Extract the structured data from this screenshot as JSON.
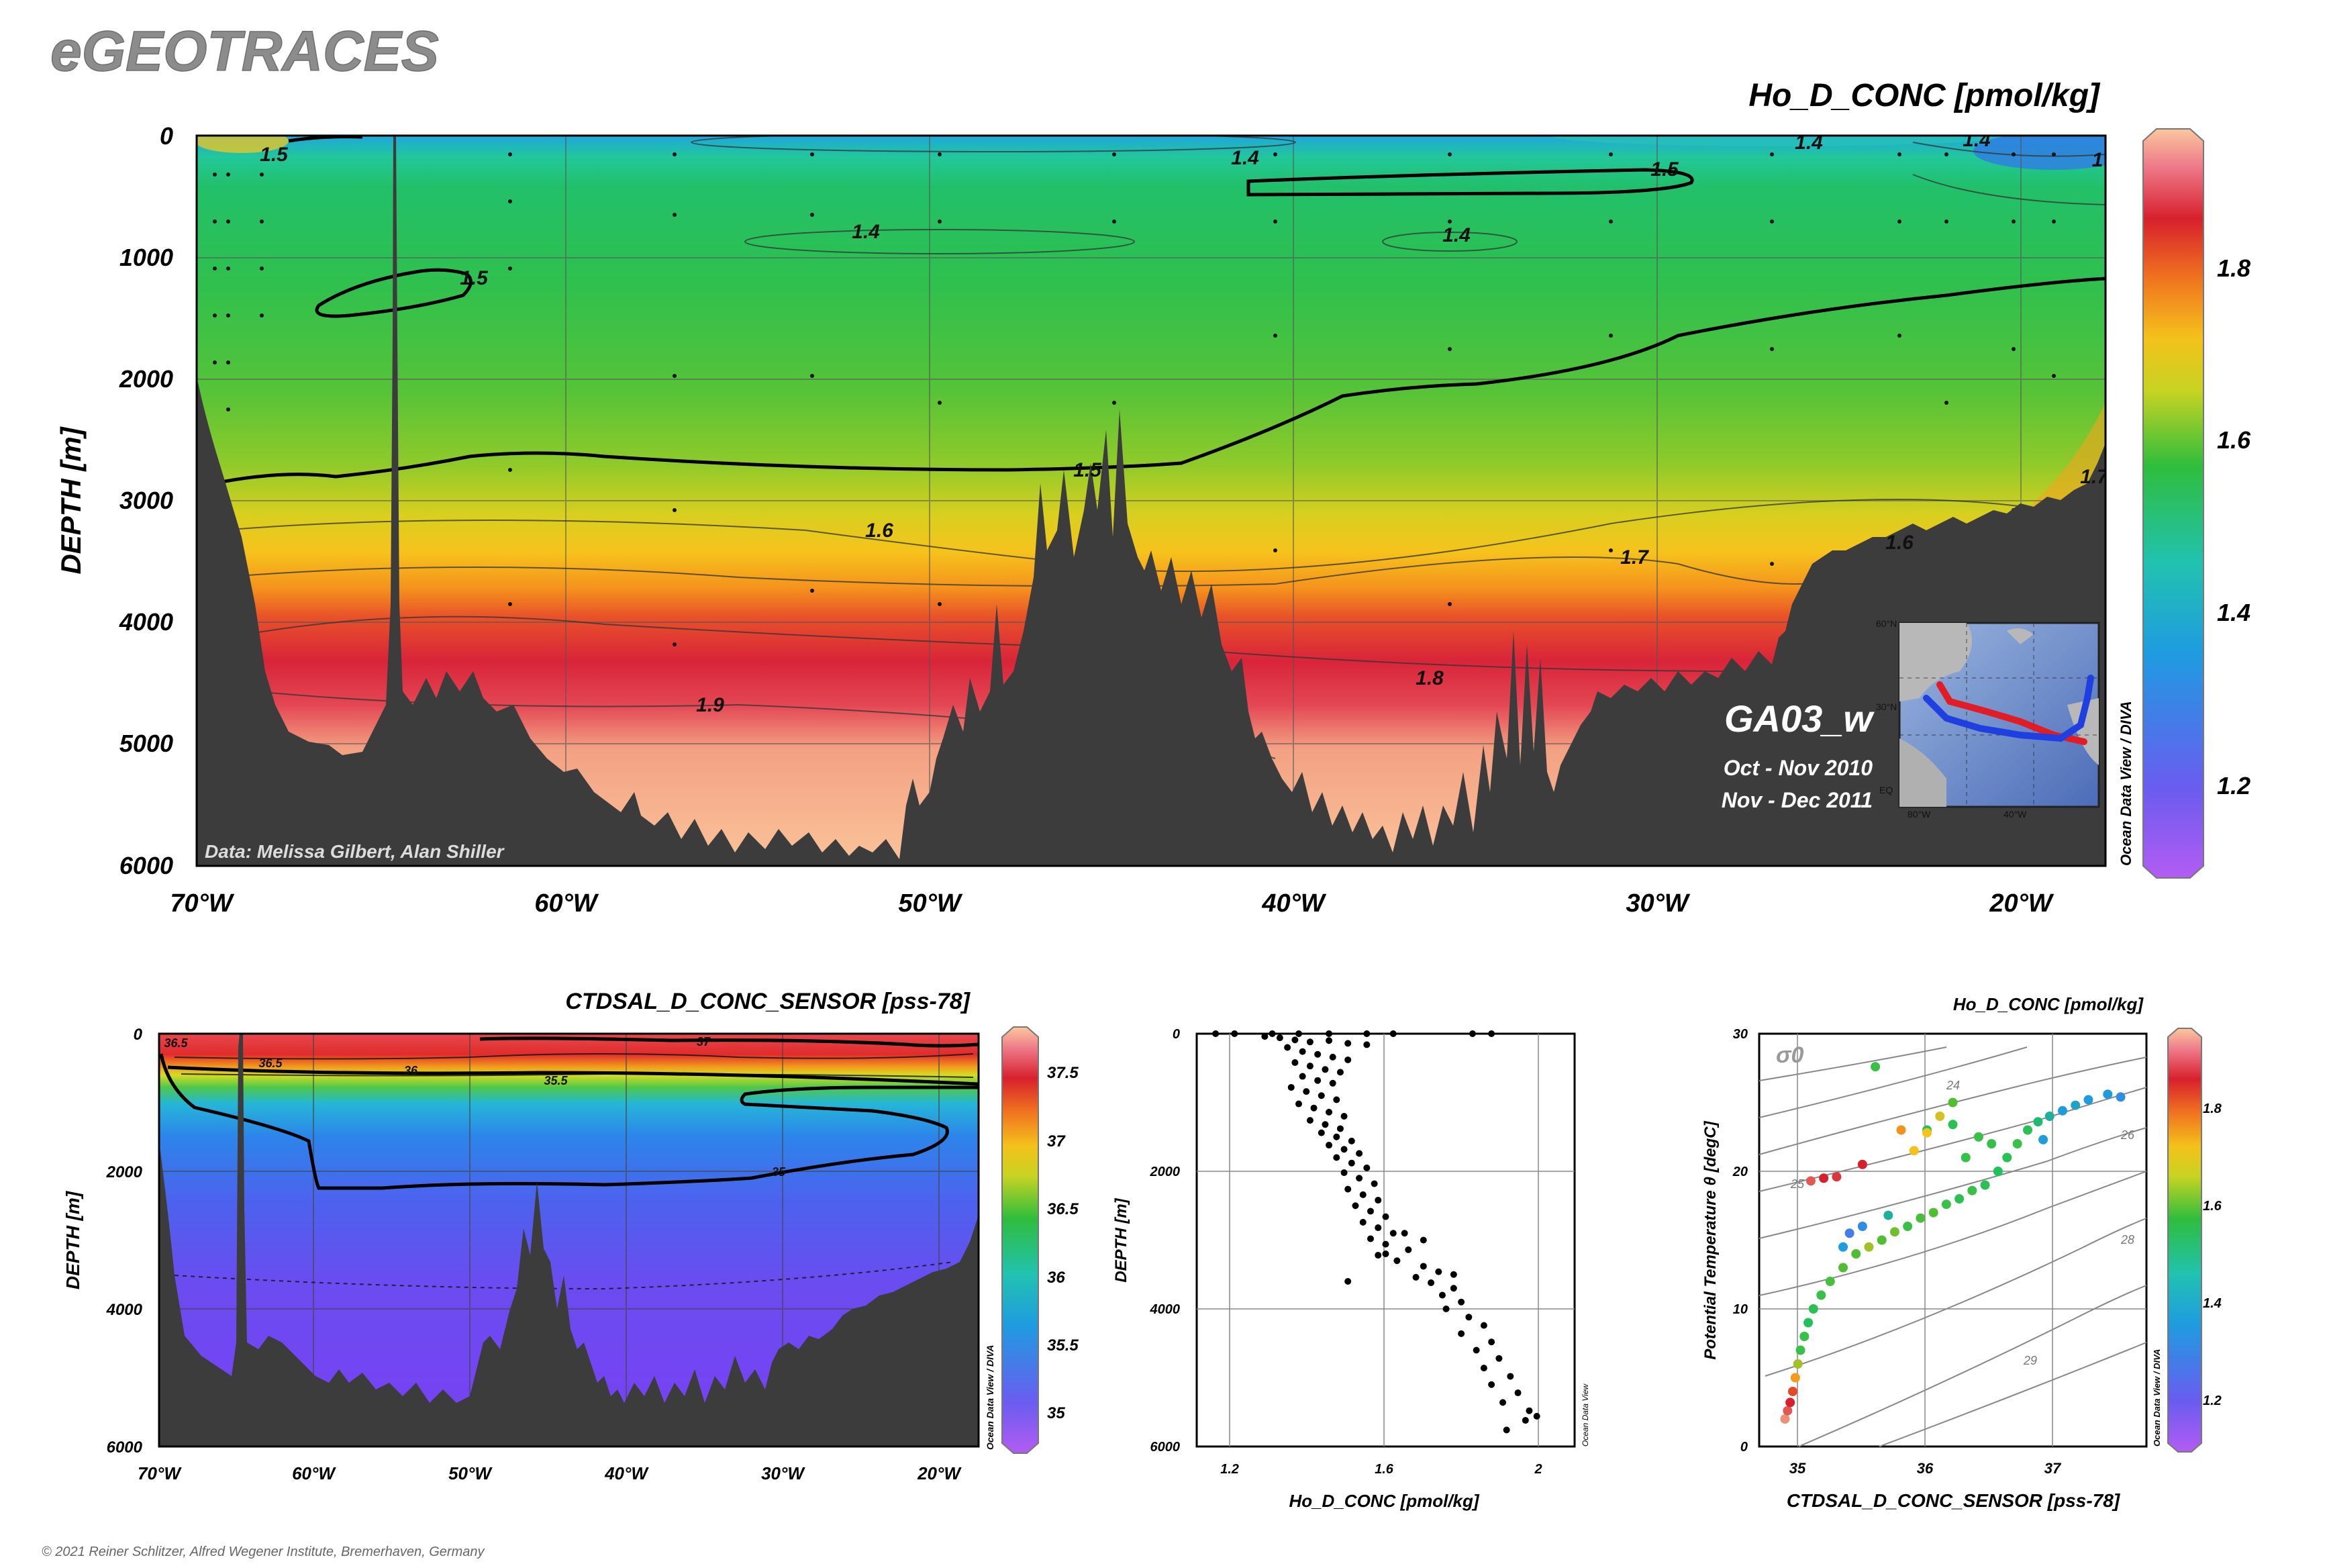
{
  "brand": "eGEOTRACES",
  "copyright": "© 2021 Reiner Schlitzer, Alfred Wegener Institute, Bremerhaven, Germany",
  "colors": {
    "seafloor": "#3c3c3c",
    "contour": "#000000",
    "cruise_leg1": "#e21c24",
    "cruise_leg2": "#1f3fe0",
    "brand_text": "#8c8c8c"
  },
  "chart_data": [
    {
      "type": "heatmap",
      "title": "Ho_D_CONC [pmol/kg]",
      "ylabel": "DEPTH [m]",
      "xticks": [
        "70°W",
        "60°W",
        "50°W",
        "40°W",
        "30°W",
        "20°W"
      ],
      "yticks": [
        "0",
        "1000",
        "2000",
        "3000",
        "4000",
        "5000",
        "6000"
      ],
      "xlim": [
        -70,
        -17.5
      ],
      "ylim": [
        6000,
        0
      ],
      "colorbar": {
        "ticks": [
          "1.2",
          "1.4",
          "1.6",
          "1.8"
        ],
        "range": [
          1.1,
          1.95
        ]
      },
      "contour_labels": [
        "1.5",
        "1.4",
        "1.4",
        "1.4",
        "1.5",
        "1.4",
        "1.4",
        "1.5",
        "1.5",
        "1.6",
        "1.7",
        "1.6",
        "1.8",
        "1.9",
        "1.7",
        "1"
      ],
      "credit": "Data: Melissa Gilbert, Alan Shiller",
      "cruise": "GA03_w",
      "dates": [
        "Oct - Nov 2010",
        "Nov - Dec 2011"
      ],
      "software": "Ocean Data View / DIVA",
      "inset_map": {
        "lat_labels": [
          "60°N",
          "30°N",
          "EQ"
        ],
        "lon_labels": [
          "80°W",
          "40°W"
        ]
      }
    },
    {
      "type": "heatmap",
      "title": "CTDSAL_D_CONC_SENSOR [pss-78]",
      "ylabel": "DEPTH [m]",
      "xticks": [
        "70°W",
        "60°W",
        "50°W",
        "40°W",
        "30°W",
        "20°W"
      ],
      "yticks": [
        "0",
        "2000",
        "4000",
        "6000"
      ],
      "xlim": [
        -70,
        -17.5
      ],
      "ylim": [
        6000,
        0
      ],
      "colorbar": {
        "ticks": [
          "35",
          "35.5",
          "36",
          "36.5",
          "37",
          "37.5"
        ],
        "range": [
          34.8,
          37.8
        ]
      },
      "contour_labels": [
        "36.5",
        "36.5",
        "37",
        "36",
        "35.5",
        "35"
      ],
      "software": "Ocean Data View / DIVA"
    },
    {
      "type": "scatter",
      "xlabel": "Ho_D_CONC [pmol/kg]",
      "ylabel": "DEPTH [m]",
      "xticks": [
        "1.2",
        "1.6",
        "2"
      ],
      "yticks": [
        "0",
        "2000",
        "4000",
        "6000"
      ],
      "xlim": [
        1.1,
        2.1
      ],
      "ylim": [
        6000,
        0
      ],
      "series": [
        {
          "points": [
            [
              1.15,
              0
            ],
            [
              1.2,
              0
            ],
            [
              1.3,
              0
            ],
            [
              1.37,
              0
            ],
            [
              1.45,
              0
            ],
            [
              1.55,
              0
            ],
            [
              1.62,
              0
            ],
            [
              1.83,
              0
            ],
            [
              1.88,
              0
            ],
            [
              1.28,
              40
            ],
            [
              1.32,
              60
            ],
            [
              1.36,
              90
            ],
            [
              1.4,
              120
            ],
            [
              1.45,
              100
            ],
            [
              1.5,
              140
            ],
            [
              1.55,
              160
            ],
            [
              1.34,
              200
            ],
            [
              1.38,
              260
            ],
            [
              1.42,
              300
            ],
            [
              1.46,
              340
            ],
            [
              1.5,
              380
            ],
            [
              1.36,
              420
            ],
            [
              1.4,
              470
            ],
            [
              1.44,
              520
            ],
            [
              1.48,
              560
            ],
            [
              1.38,
              620
            ],
            [
              1.42,
              680
            ],
            [
              1.46,
              720
            ],
            [
              1.35,
              780
            ],
            [
              1.39,
              840
            ],
            [
              1.43,
              900
            ],
            [
              1.47,
              960
            ],
            [
              1.37,
              1020
            ],
            [
              1.41,
              1080
            ],
            [
              1.45,
              1140
            ],
            [
              1.49,
              1200
            ],
            [
              1.4,
              1260
            ],
            [
              1.44,
              1320
            ],
            [
              1.48,
              1380
            ],
            [
              1.43,
              1440
            ],
            [
              1.47,
              1500
            ],
            [
              1.51,
              1560
            ],
            [
              1.45,
              1620
            ],
            [
              1.49,
              1680
            ],
            [
              1.53,
              1740
            ],
            [
              1.47,
              1800
            ],
            [
              1.51,
              1880
            ],
            [
              1.55,
              1950
            ],
            [
              1.49,
              2020
            ],
            [
              1.53,
              2100
            ],
            [
              1.57,
              2180
            ],
            [
              1.5,
              2260
            ],
            [
              1.54,
              2340
            ],
            [
              1.58,
              2420
            ],
            [
              1.52,
              2500
            ],
            [
              1.56,
              2580
            ],
            [
              1.6,
              2660
            ],
            [
              1.54,
              2740
            ],
            [
              1.58,
              2820
            ],
            [
              1.62,
              2900
            ],
            [
              1.56,
              2980
            ],
            [
              1.6,
              3060
            ],
            [
              1.66,
              3140
            ],
            [
              1.58,
              3220
            ],
            [
              1.63,
              3300
            ],
            [
              1.7,
              3380
            ],
            [
              1.74,
              3460
            ],
            [
              1.68,
              3540
            ],
            [
              1.72,
              3620
            ],
            [
              1.78,
              3700
            ],
            [
              1.75,
              3800
            ],
            [
              1.8,
              3900
            ],
            [
              1.76,
              4000
            ],
            [
              1.82,
              4120
            ],
            [
              1.86,
              4240
            ],
            [
              1.8,
              4360
            ],
            [
              1.88,
              4480
            ],
            [
              1.84,
              4600
            ],
            [
              1.9,
              4720
            ],
            [
              1.86,
              4860
            ],
            [
              1.93,
              4980
            ],
            [
              1.88,
              5100
            ],
            [
              1.95,
              5220
            ],
            [
              1.91,
              5360
            ],
            [
              1.98,
              5480
            ],
            [
              2.0,
              5560
            ],
            [
              1.97,
              5620
            ],
            [
              1.92,
              5760
            ],
            [
              1.5,
              3600
            ],
            [
              1.6,
              3200
            ],
            [
              1.65,
              2900
            ],
            [
              1.7,
              3000
            ],
            [
              1.78,
              3500
            ]
          ]
        }
      ],
      "software": "Ocean Data View"
    },
    {
      "type": "scatter",
      "title": "Ho_D_CONC [pmol/kg]",
      "xlabel": "CTDSAL_D_CONC_SENSOR [pss-78]",
      "ylabel": "Potential Temperature θ [degC]",
      "xticks": [
        "35",
        "36",
        "37"
      ],
      "yticks": [
        "0",
        "10",
        "20",
        "30"
      ],
      "xlim": [
        34.7,
        37.7
      ],
      "ylim": [
        0,
        30
      ],
      "isopycnal_label": "σ0",
      "isopycnal_ticks": [
        "24",
        "26",
        "28",
        "29",
        "25"
      ],
      "colorbar": {
        "ticks": [
          "1.2",
          "1.4",
          "1.6",
          "1.8"
        ],
        "range": [
          1.1,
          1.95
        ]
      },
      "series": [
        {
          "points": [
            [
              34.9,
              2.0,
              1.9
            ],
            [
              34.92,
              2.6,
              1.85
            ],
            [
              34.94,
              3.2,
              1.8
            ],
            [
              34.96,
              4.0,
              1.75
            ],
            [
              34.98,
              5.0,
              1.65
            ],
            [
              35.0,
              6.0,
              1.55
            ],
            [
              35.02,
              7.0,
              1.45
            ],
            [
              35.05,
              8.0,
              1.45
            ],
            [
              35.08,
              9.0,
              1.4
            ],
            [
              35.12,
              10.0,
              1.42
            ],
            [
              35.18,
              11.0,
              1.45
            ],
            [
              35.25,
              12.0,
              1.48
            ],
            [
              35.35,
              13.0,
              1.5
            ],
            [
              35.45,
              14.0,
              1.5
            ],
            [
              35.55,
              14.5,
              1.55
            ],
            [
              35.65,
              15.0,
              1.5
            ],
            [
              35.75,
              15.6,
              1.52
            ],
            [
              35.85,
              16.0,
              1.45
            ],
            [
              35.95,
              16.6,
              1.48
            ],
            [
              36.05,
              17.0,
              1.5
            ],
            [
              36.15,
              17.6,
              1.45
            ],
            [
              36.25,
              18.0,
              1.42
            ],
            [
              36.35,
              18.6,
              1.45
            ],
            [
              36.45,
              19.0,
              1.42
            ],
            [
              36.55,
              20.0,
              1.4
            ],
            [
              36.62,
              21.0,
              1.42
            ],
            [
              36.7,
              22.0,
              1.45
            ],
            [
              36.78,
              23.0,
              1.42
            ],
            [
              36.86,
              23.6,
              1.38
            ],
            [
              36.95,
              24.0,
              1.35
            ],
            [
              37.05,
              24.4,
              1.3
            ],
            [
              37.15,
              24.8,
              1.32
            ],
            [
              37.25,
              25.2,
              1.3
            ],
            [
              37.4,
              25.6,
              1.3
            ],
            [
              37.5,
              25.4,
              1.28
            ],
            [
              36.0,
              23.0,
              1.4
            ],
            [
              36.2,
              23.4,
              1.42
            ],
            [
              36.4,
              22.5,
              1.45
            ],
            [
              36.5,
              22.0,
              1.44
            ],
            [
              36.3,
              21.0,
              1.44
            ],
            [
              35.2,
              19.5,
              1.8
            ],
            [
              35.3,
              19.6,
              1.82
            ],
            [
              35.1,
              19.3,
              1.85
            ],
            [
              35.5,
              20.5,
              1.8
            ],
            [
              35.8,
              23.0,
              1.66
            ],
            [
              35.9,
              21.5,
              1.6
            ],
            [
              36.0,
              22.8,
              1.6
            ],
            [
              36.1,
              24.0,
              1.58
            ],
            [
              35.6,
              27.6,
              1.45
            ],
            [
              36.2,
              25.0,
              1.5
            ],
            [
              35.4,
              15.5,
              1.25
            ],
            [
              35.5,
              16.0,
              1.28
            ],
            [
              35.35,
              14.5,
              1.3
            ],
            [
              35.7,
              16.8,
              1.35
            ],
            [
              36.9,
              22.3,
              1.3
            ]
          ]
        }
      ],
      "software": "Ocean Data View / DIVA"
    }
  ]
}
